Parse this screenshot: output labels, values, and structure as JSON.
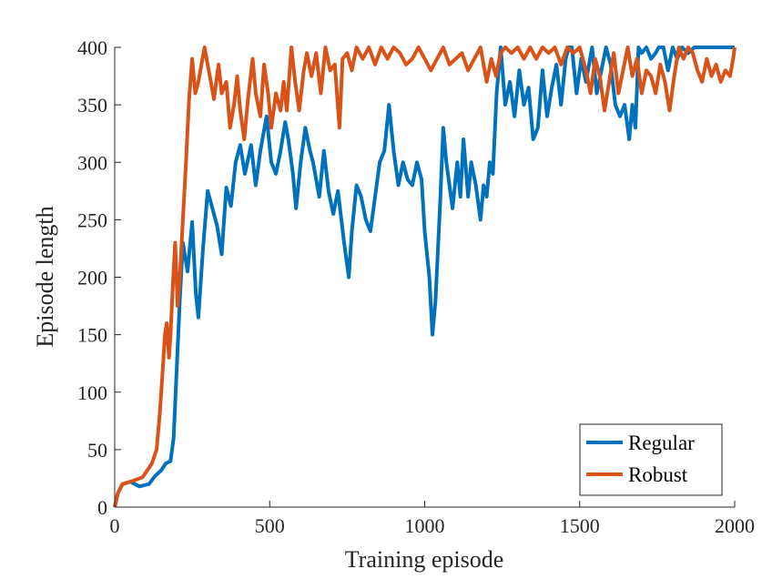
{
  "chart_data": {
    "type": "line",
    "title": "",
    "xlabel": "Training episode",
    "ylabel": "Episode length",
    "xlim": [
      0,
      2000
    ],
    "ylim": [
      0,
      400
    ],
    "xticks": [
      0,
      500,
      1000,
      1500,
      2000
    ],
    "yticks": [
      0,
      50,
      100,
      150,
      200,
      250,
      300,
      350,
      400
    ],
    "xtick_labels": [
      "0",
      "500",
      "1000",
      "1500",
      "2000"
    ],
    "ytick_labels": [
      "0",
      "50",
      "100",
      "150",
      "200",
      "250",
      "300",
      "350",
      "400"
    ],
    "grid": false,
    "legend_position": "bottom-right",
    "series": [
      {
        "name": "Regular",
        "color": "#0072BD",
        "points": [
          [
            0,
            0
          ],
          [
            10,
            12
          ],
          [
            25,
            20
          ],
          [
            50,
            22
          ],
          [
            80,
            18
          ],
          [
            110,
            20
          ],
          [
            130,
            27
          ],
          [
            150,
            32
          ],
          [
            165,
            38
          ],
          [
            180,
            40
          ],
          [
            190,
            60
          ],
          [
            200,
            120
          ],
          [
            210,
            180
          ],
          [
            220,
            230
          ],
          [
            235,
            205
          ],
          [
            250,
            248
          ],
          [
            262,
            185
          ],
          [
            270,
            165
          ],
          [
            285,
            225
          ],
          [
            300,
            275
          ],
          [
            315,
            260
          ],
          [
            330,
            245
          ],
          [
            345,
            220
          ],
          [
            360,
            278
          ],
          [
            375,
            262
          ],
          [
            390,
            300
          ],
          [
            405,
            315
          ],
          [
            420,
            290
          ],
          [
            440,
            315
          ],
          [
            455,
            280
          ],
          [
            470,
            310
          ],
          [
            490,
            340
          ],
          [
            505,
            300
          ],
          [
            520,
            290
          ],
          [
            535,
            310
          ],
          [
            550,
            335
          ],
          [
            560,
            320
          ],
          [
            575,
            290
          ],
          [
            585,
            260
          ],
          [
            600,
            300
          ],
          [
            615,
            330
          ],
          [
            630,
            310
          ],
          [
            640,
            300
          ],
          [
            660,
            270
          ],
          [
            675,
            310
          ],
          [
            690,
            275
          ],
          [
            705,
            255
          ],
          [
            720,
            275
          ],
          [
            740,
            230
          ],
          [
            755,
            200
          ],
          [
            765,
            240
          ],
          [
            780,
            280
          ],
          [
            795,
            270
          ],
          [
            810,
            250
          ],
          [
            825,
            240
          ],
          [
            840,
            270
          ],
          [
            855,
            300
          ],
          [
            870,
            310
          ],
          [
            885,
            350
          ],
          [
            900,
            310
          ],
          [
            915,
            280
          ],
          [
            930,
            300
          ],
          [
            945,
            285
          ],
          [
            960,
            280
          ],
          [
            975,
            300
          ],
          [
            990,
            285
          ],
          [
            1000,
            240
          ],
          [
            1015,
            200
          ],
          [
            1025,
            150
          ],
          [
            1035,
            180
          ],
          [
            1050,
            265
          ],
          [
            1060,
            330
          ],
          [
            1070,
            300
          ],
          [
            1080,
            280
          ],
          [
            1090,
            260
          ],
          [
            1105,
            300
          ],
          [
            1115,
            270
          ],
          [
            1125,
            320
          ],
          [
            1140,
            270
          ],
          [
            1150,
            300
          ],
          [
            1165,
            280
          ],
          [
            1180,
            250
          ],
          [
            1190,
            280
          ],
          [
            1200,
            270
          ],
          [
            1210,
            300
          ],
          [
            1220,
            290
          ],
          [
            1232,
            360
          ],
          [
            1245,
            400
          ],
          [
            1260,
            350
          ],
          [
            1275,
            370
          ],
          [
            1290,
            340
          ],
          [
            1305,
            380
          ],
          [
            1320,
            350
          ],
          [
            1335,
            365
          ],
          [
            1350,
            320
          ],
          [
            1365,
            330
          ],
          [
            1380,
            380
          ],
          [
            1395,
            340
          ],
          [
            1410,
            365
          ],
          [
            1425,
            385
          ],
          [
            1440,
            350
          ],
          [
            1455,
            390
          ],
          [
            1465,
            400
          ],
          [
            1475,
            400
          ],
          [
            1490,
            360
          ],
          [
            1505,
            390
          ],
          [
            1520,
            370
          ],
          [
            1540,
            400
          ],
          [
            1555,
            360
          ],
          [
            1570,
            380
          ],
          [
            1585,
            400
          ],
          [
            1600,
            385
          ],
          [
            1615,
            350
          ],
          [
            1630,
            340
          ],
          [
            1645,
            350
          ],
          [
            1660,
            320
          ],
          [
            1670,
            350
          ],
          [
            1680,
            330
          ],
          [
            1690,
            400
          ],
          [
            1700,
            395
          ],
          [
            1715,
            400
          ],
          [
            1730,
            390
          ],
          [
            1745,
            395
          ],
          [
            1755,
            400
          ],
          [
            1770,
            400
          ],
          [
            1785,
            380
          ],
          [
            1800,
            400
          ],
          [
            1815,
            390
          ],
          [
            1830,
            400
          ],
          [
            1850,
            395
          ],
          [
            1870,
            400
          ],
          [
            1890,
            400
          ],
          [
            1910,
            400
          ],
          [
            1930,
            400
          ],
          [
            1950,
            400
          ],
          [
            1970,
            400
          ],
          [
            1990,
            400
          ],
          [
            2000,
            400
          ]
        ]
      },
      {
        "name": "Robust",
        "color": "#D95319",
        "points": [
          [
            0,
            0
          ],
          [
            10,
            12
          ],
          [
            25,
            20
          ],
          [
            50,
            22
          ],
          [
            70,
            24
          ],
          [
            90,
            26
          ],
          [
            105,
            32
          ],
          [
            120,
            38
          ],
          [
            135,
            50
          ],
          [
            145,
            80
          ],
          [
            155,
            120
          ],
          [
            162,
            150
          ],
          [
            168,
            160
          ],
          [
            175,
            130
          ],
          [
            180,
            150
          ],
          [
            188,
            195
          ],
          [
            195,
            230
          ],
          [
            203,
            175
          ],
          [
            210,
            200
          ],
          [
            220,
            250
          ],
          [
            230,
            300
          ],
          [
            240,
            355
          ],
          [
            250,
            390
          ],
          [
            260,
            360
          ],
          [
            270,
            370
          ],
          [
            280,
            385
          ],
          [
            290,
            400
          ],
          [
            300,
            385
          ],
          [
            310,
            370
          ],
          [
            320,
            355
          ],
          [
            335,
            385
          ],
          [
            345,
            360
          ],
          [
            360,
            370
          ],
          [
            372,
            330
          ],
          [
            385,
            350
          ],
          [
            395,
            375
          ],
          [
            405,
            345
          ],
          [
            418,
            320
          ],
          [
            430,
            355
          ],
          [
            445,
            390
          ],
          [
            455,
            360
          ],
          [
            470,
            340
          ],
          [
            482,
            385
          ],
          [
            495,
            360
          ],
          [
            505,
            330
          ],
          [
            520,
            360
          ],
          [
            535,
            345
          ],
          [
            545,
            370
          ],
          [
            555,
            345
          ],
          [
            570,
            400
          ],
          [
            582,
            370
          ],
          [
            595,
            345
          ],
          [
            610,
            380
          ],
          [
            620,
            395
          ],
          [
            635,
            375
          ],
          [
            650,
            395
          ],
          [
            665,
            360
          ],
          [
            680,
            400
          ],
          [
            695,
            380
          ],
          [
            710,
            385
          ],
          [
            725,
            330
          ],
          [
            735,
            390
          ],
          [
            750,
            395
          ],
          [
            765,
            380
          ],
          [
            780,
            400
          ],
          [
            800,
            390
          ],
          [
            820,
            400
          ],
          [
            840,
            385
          ],
          [
            860,
            400
          ],
          [
            880,
            390
          ],
          [
            900,
            400
          ],
          [
            920,
            395
          ],
          [
            940,
            385
          ],
          [
            960,
            390
          ],
          [
            980,
            400
          ],
          [
            1000,
            390
          ],
          [
            1020,
            380
          ],
          [
            1040,
            390
          ],
          [
            1060,
            400
          ],
          [
            1080,
            385
          ],
          [
            1100,
            390
          ],
          [
            1120,
            395
          ],
          [
            1140,
            380
          ],
          [
            1160,
            390
          ],
          [
            1180,
            400
          ],
          [
            1200,
            370
          ],
          [
            1215,
            390
          ],
          [
            1230,
            375
          ],
          [
            1245,
            395
          ],
          [
            1260,
            400
          ],
          [
            1280,
            395
          ],
          [
            1300,
            400
          ],
          [
            1320,
            390
          ],
          [
            1340,
            400
          ],
          [
            1360,
            390
          ],
          [
            1380,
            400
          ],
          [
            1400,
            395
          ],
          [
            1420,
            400
          ],
          [
            1440,
            385
          ],
          [
            1460,
            400
          ],
          [
            1480,
            395
          ],
          [
            1500,
            400
          ],
          [
            1520,
            380
          ],
          [
            1535,
            360
          ],
          [
            1550,
            390
          ],
          [
            1565,
            375
          ],
          [
            1580,
            345
          ],
          [
            1595,
            370
          ],
          [
            1610,
            395
          ],
          [
            1625,
            360
          ],
          [
            1640,
            380
          ],
          [
            1655,
            400
          ],
          [
            1670,
            375
          ],
          [
            1685,
            390
          ],
          [
            1700,
            360
          ],
          [
            1715,
            380
          ],
          [
            1730,
            375
          ],
          [
            1745,
            360
          ],
          [
            1760,
            385
          ],
          [
            1775,
            370
          ],
          [
            1790,
            345
          ],
          [
            1805,
            375
          ],
          [
            1820,
            400
          ],
          [
            1835,
            390
          ],
          [
            1850,
            400
          ],
          [
            1865,
            395
          ],
          [
            1880,
            380
          ],
          [
            1895,
            370
          ],
          [
            1910,
            390
          ],
          [
            1925,
            375
          ],
          [
            1940,
            385
          ],
          [
            1955,
            370
          ],
          [
            1970,
            380
          ],
          [
            1985,
            375
          ],
          [
            1995,
            390
          ],
          [
            2000,
            400
          ]
        ]
      }
    ]
  }
}
